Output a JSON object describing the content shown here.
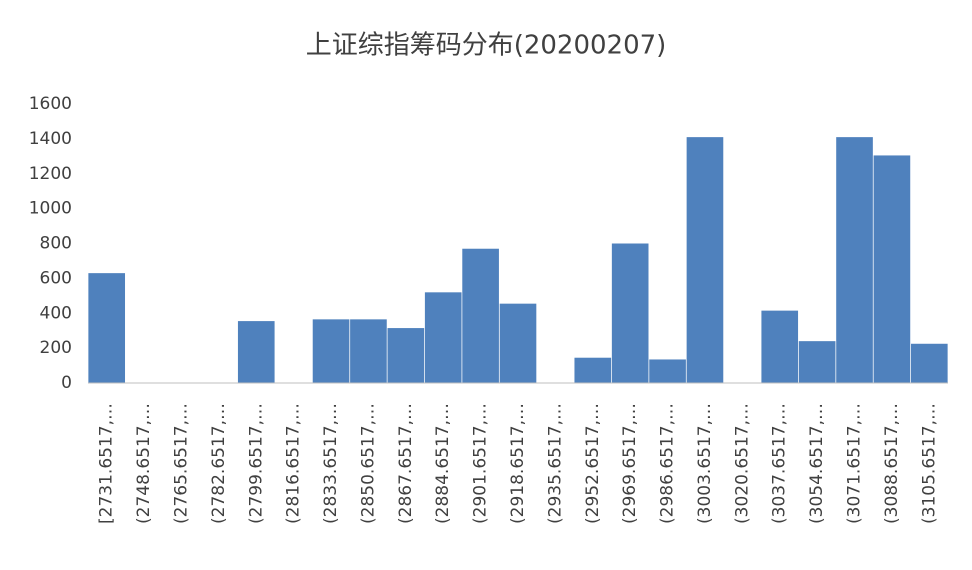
{
  "chart_data": {
    "type": "bar",
    "title": "上证综指筹码分布(20200207)",
    "categories": [
      "[2731.6517,…",
      "(2748.6517,…",
      "(2765.6517,…",
      "(2782.6517,…",
      "(2799.6517,…",
      "(2816.6517,…",
      "(2833.6517,…",
      "(2850.6517,…",
      "(2867.6517,…",
      "(2884.6517,…",
      "(2901.6517,…",
      "(2918.6517,…",
      "(2935.6517,…",
      "(2952.6517,…",
      "(2969.6517,…",
      "(2986.6517,…",
      "(3003.6517,…",
      "(3020.6517,…",
      "(3037.6517,…",
      "(3054.6517,…",
      "(3071.6517,…",
      "(3088.6517,…",
      "(3105.6517,…"
    ],
    "values": [
      630,
      0,
      0,
      0,
      355,
      0,
      365,
      365,
      315,
      520,
      770,
      455,
      0,
      145,
      800,
      135,
      1410,
      0,
      415,
      240,
      1410,
      1305,
      225
    ],
    "color": "#4f81bd",
    "ylim": [
      0,
      1600
    ],
    "yticks": [
      0,
      200,
      400,
      600,
      800,
      1000,
      1200,
      1400,
      1600
    ],
    "grid": false
  }
}
